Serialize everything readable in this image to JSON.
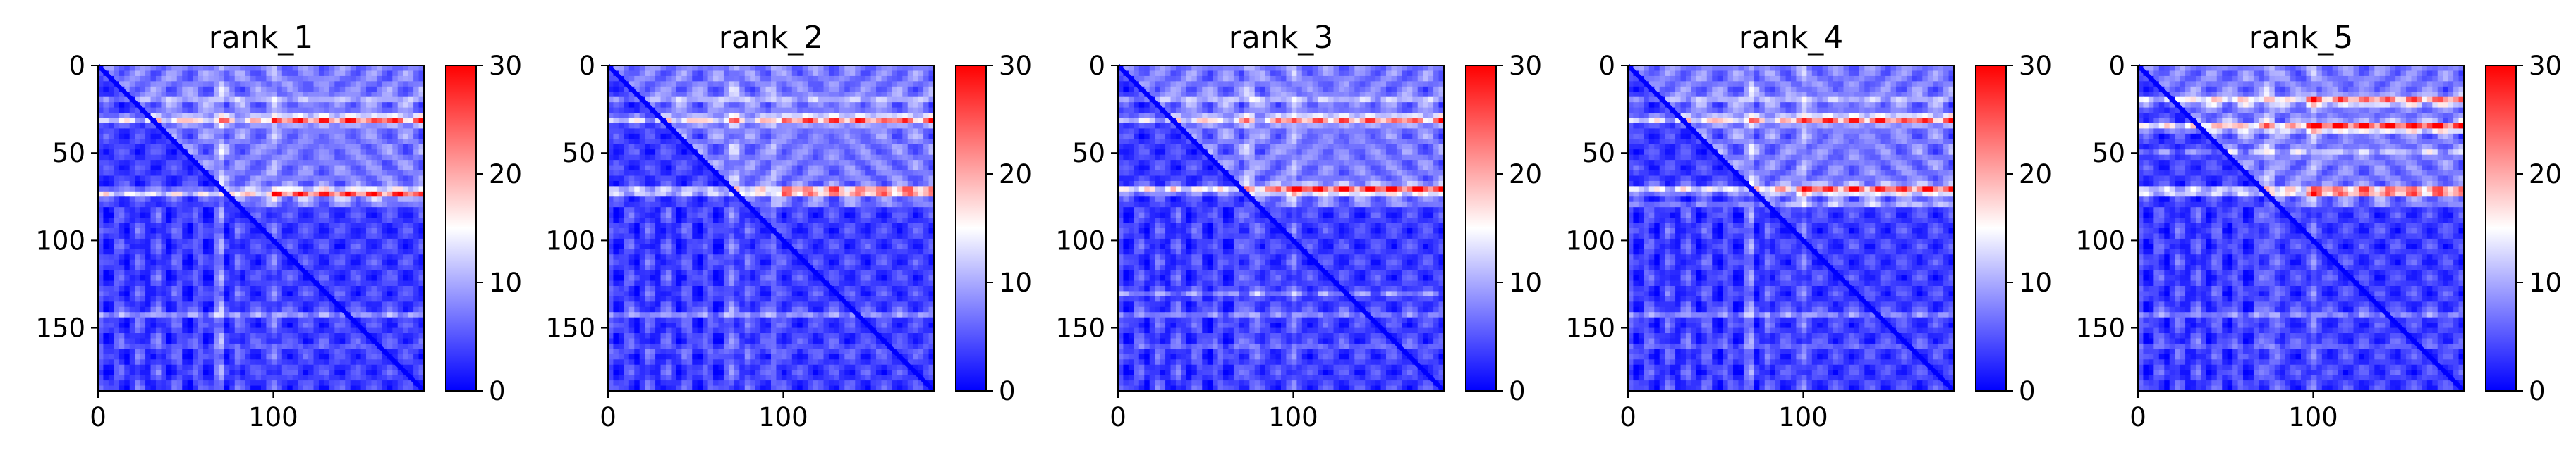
{
  "chart_data": [
    {
      "type": "heatmap",
      "title": "rank_1",
      "xlim": [
        0,
        186
      ],
      "ylim": [
        0,
        186
      ],
      "x_ticks": [
        0,
        100
      ],
      "y_ticks": [
        0,
        50,
        100,
        150
      ],
      "colorbar": {
        "colormap": "bwr",
        "range": [
          0,
          30
        ],
        "ticks": [
          0,
          10,
          20,
          30
        ]
      },
      "matrix_size": 186,
      "strong_bands": [
        {
          "at": 31,
          "intensity": 0.85
        },
        {
          "at": 73,
          "intensity": 0.9
        }
      ],
      "weak_bands": [
        {
          "at": 19,
          "intensity": 0.45
        },
        {
          "at": 142,
          "intensity": 0.75
        },
        {
          "at": 160,
          "intensity": 0.25
        }
      ],
      "column_stripes": [
        {
          "at": 70,
          "intensity": 0.5
        },
        {
          "at": 100,
          "intensity": 0.3
        }
      ],
      "hot_region": {
        "x_start": 100,
        "x_end": 186
      }
    },
    {
      "type": "heatmap",
      "title": "rank_2",
      "xlim": [
        0,
        186
      ],
      "ylim": [
        0,
        186
      ],
      "x_ticks": [
        0,
        100
      ],
      "y_ticks": [
        0,
        50,
        100,
        150
      ],
      "colorbar": {
        "colormap": "bwr",
        "range": [
          0,
          30
        ],
        "ticks": [
          0,
          10,
          20,
          30
        ]
      },
      "matrix_size": 186,
      "strong_bands": [
        {
          "at": 31,
          "intensity": 0.8
        },
        {
          "at": 72,
          "intensity": 0.95
        }
      ],
      "weak_bands": [
        {
          "at": 19,
          "intensity": 0.5
        },
        {
          "at": 142,
          "intensity": 0.7
        },
        {
          "at": 162,
          "intensity": 0.3
        }
      ],
      "column_stripes": [
        {
          "at": 72,
          "intensity": 0.45
        },
        {
          "at": 95,
          "intensity": 0.3
        }
      ],
      "hot_region": {
        "x_start": 100,
        "x_end": 186
      }
    },
    {
      "type": "heatmap",
      "title": "rank_3",
      "xlim": [
        0,
        186
      ],
      "ylim": [
        0,
        186
      ],
      "x_ticks": [
        0,
        100
      ],
      "y_ticks": [
        0,
        50,
        100,
        150
      ],
      "colorbar": {
        "colormap": "bwr",
        "range": [
          0,
          30
        ],
        "ticks": [
          0,
          10,
          20,
          30
        ]
      },
      "matrix_size": 186,
      "strong_bands": [
        {
          "at": 31,
          "intensity": 0.75
        },
        {
          "at": 71,
          "intensity": 1.0
        }
      ],
      "weak_bands": [
        {
          "at": 19,
          "intensity": 0.55
        },
        {
          "at": 130,
          "intensity": 0.6
        },
        {
          "at": 142,
          "intensity": 0.55
        },
        {
          "at": 160,
          "intensity": 0.35
        }
      ],
      "column_stripes": [
        {
          "at": 75,
          "intensity": 0.45
        },
        {
          "at": 100,
          "intensity": 0.35
        }
      ],
      "hot_region": {
        "x_start": 90,
        "x_end": 186
      }
    },
    {
      "type": "heatmap",
      "title": "rank_4",
      "xlim": [
        0,
        186
      ],
      "ylim": [
        0,
        186
      ],
      "x_ticks": [
        0,
        100
      ],
      "y_ticks": [
        0,
        50,
        100,
        150
      ],
      "colorbar": {
        "colormap": "bwr",
        "range": [
          0,
          30
        ],
        "ticks": [
          0,
          10,
          20,
          30
        ]
      },
      "matrix_size": 186,
      "strong_bands": [
        {
          "at": 31,
          "intensity": 0.85
        },
        {
          "at": 71,
          "intensity": 0.9
        }
      ],
      "weak_bands": [
        {
          "at": 19,
          "intensity": 0.5
        },
        {
          "at": 80,
          "intensity": 0.45
        },
        {
          "at": 142,
          "intensity": 0.65
        },
        {
          "at": 160,
          "intensity": 0.3
        }
      ],
      "column_stripes": [
        {
          "at": 70,
          "intensity": 0.45
        },
        {
          "at": 100,
          "intensity": 0.35
        }
      ],
      "hot_region": {
        "x_start": 95,
        "x_end": 186
      }
    },
    {
      "type": "heatmap",
      "title": "rank_5",
      "xlim": [
        0,
        186
      ],
      "ylim": [
        0,
        186
      ],
      "x_ticks": [
        0,
        100
      ],
      "y_ticks": [
        0,
        50,
        100,
        150
      ],
      "colorbar": {
        "colormap": "bwr",
        "range": [
          0,
          30
        ],
        "ticks": [
          0,
          10,
          20,
          30
        ]
      },
      "matrix_size": 186,
      "strong_bands": [
        {
          "at": 20,
          "intensity": 0.75
        },
        {
          "at": 35,
          "intensity": 1.0
        },
        {
          "at": 72,
          "intensity": 1.0
        }
      ],
      "weak_bands": [
        {
          "at": 50,
          "intensity": 0.55
        },
        {
          "at": 142,
          "intensity": 0.6
        },
        {
          "at": 160,
          "intensity": 0.3
        }
      ],
      "column_stripes": [
        {
          "at": 75,
          "intensity": 0.5
        },
        {
          "at": 100,
          "intensity": 0.35
        }
      ],
      "hot_region": {
        "x_start": 95,
        "x_end": 186
      }
    }
  ]
}
